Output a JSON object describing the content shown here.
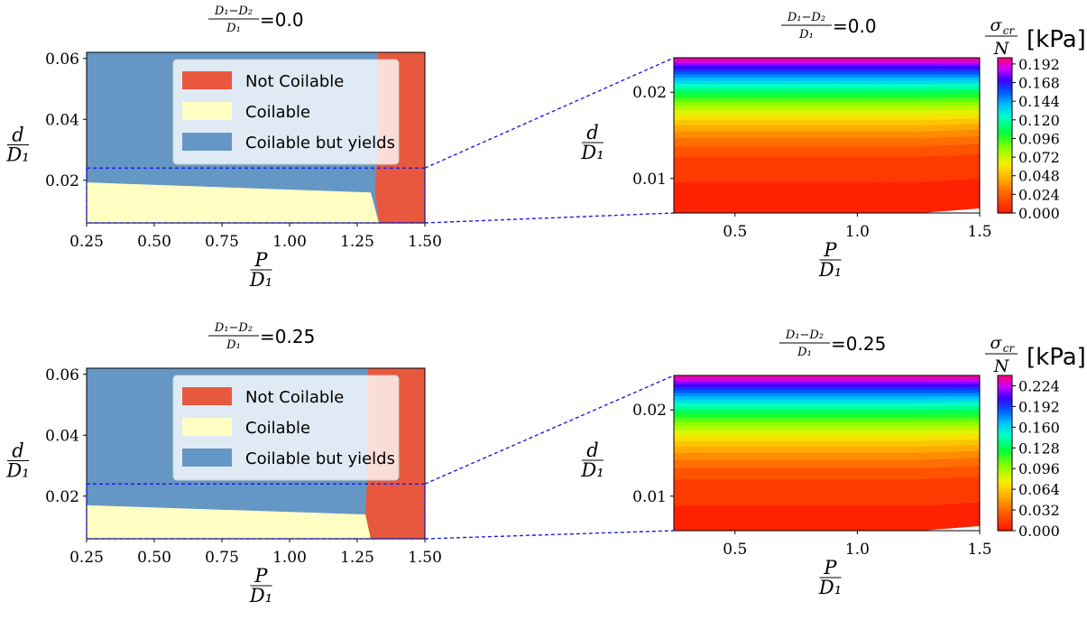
{
  "figure": {
    "panels": [
      {
        "id": "top",
        "title_ratio": "D₁−D₂",
        "title_ratio_den": "D₁",
        "title_value": "=0.0"
      },
      {
        "id": "bottom",
        "title_ratio": "D₁−D₂",
        "title_ratio_den": "D₁",
        "title_value": "=0.25"
      }
    ],
    "labels": {
      "d": "d",
      "D1": "D₁",
      "P": "P",
      "sigma": "σ",
      "sigma_sub": "cr",
      "N": "N",
      "kpa": "[kPa]"
    }
  },
  "colors": {
    "not_coilable": "#e8583f",
    "coilable": "#ffffc3",
    "coilable_yields": "#6597c5",
    "zoom_box": "#1f1fe0"
  },
  "chart_data": [
    {
      "type": "area",
      "panel": "top-left",
      "title": "(D1-D2)/D1=0.0",
      "xlabel": "P/D1",
      "ylabel": "d/D1",
      "xlim": [
        0.25,
        1.5
      ],
      "ylim": [
        0.006,
        0.062
      ],
      "xticks": [
        "0.25",
        "0.50",
        "0.75",
        "1.00",
        "1.25",
        "1.50"
      ],
      "yticks": [
        "0.02",
        "0.04",
        "0.06"
      ],
      "legend": [
        "Not Coilable",
        "Coilable",
        "Coilable but yields"
      ],
      "regions": {
        "coilable_upper": [
          [
            0.25,
            0.0193
          ],
          [
            1.3,
            0.016
          ]
        ],
        "not_coilable_left": [
          [
            1.325,
            0.062
          ],
          [
            1.325,
            0.03
          ],
          [
            1.315,
            0.0165
          ],
          [
            1.33,
            0.006
          ]
        ],
        "zoom_box": [
          0.25,
          1.5,
          0.006,
          0.024
        ]
      }
    },
    {
      "type": "heatmap",
      "panel": "top-right",
      "title": "(D1-D2)/D1=0.0",
      "xlabel": "P/D1",
      "ylabel": "d/D1",
      "colorbar_label": "σcr/N [kPa]",
      "xlim": [
        0.25,
        1.5
      ],
      "ylim": [
        0.006,
        0.024
      ],
      "xticks": [
        "0.5",
        "1.0",
        "1.5"
      ],
      "yticks": [
        "0.01",
        "0.02"
      ],
      "colorbar_ticks": [
        "0.000",
        "0.024",
        "0.048",
        "0.072",
        "0.096",
        "0.120",
        "0.144",
        "0.168",
        "0.192"
      ],
      "colorbar_range": [
        0.0,
        0.2
      ],
      "levels": 25
    },
    {
      "type": "area",
      "panel": "bottom-left",
      "title": "(D1-D2)/D1=0.25",
      "xlabel": "P/D1",
      "ylabel": "d/D1",
      "xlim": [
        0.25,
        1.5
      ],
      "ylim": [
        0.006,
        0.062
      ],
      "xticks": [
        "0.25",
        "0.50",
        "0.75",
        "1.00",
        "1.25",
        "1.50"
      ],
      "yticks": [
        "0.02",
        "0.04",
        "0.06"
      ],
      "legend": [
        "Not Coilable",
        "Coilable",
        "Coilable but yields"
      ],
      "regions": {
        "coilable_upper": [
          [
            0.25,
            0.017
          ],
          [
            1.28,
            0.014
          ]
        ],
        "not_coilable_left": [
          [
            1.29,
            0.062
          ],
          [
            1.29,
            0.03
          ],
          [
            1.28,
            0.0145
          ],
          [
            1.3,
            0.006
          ]
        ],
        "zoom_box": [
          0.25,
          1.5,
          0.006,
          0.024
        ]
      }
    },
    {
      "type": "heatmap",
      "panel": "bottom-right",
      "title": "(D1-D2)/D1=0.25",
      "xlabel": "P/D1",
      "ylabel": "d/D1",
      "colorbar_label": "σcr/N [kPa]",
      "xlim": [
        0.25,
        1.5
      ],
      "ylim": [
        0.006,
        0.024
      ],
      "xticks": [
        "0.5",
        "1.0",
        "1.5"
      ],
      "yticks": [
        "0.01",
        "0.02"
      ],
      "colorbar_ticks": [
        "0.000",
        "0.032",
        "0.064",
        "0.096",
        "0.128",
        "0.160",
        "0.192",
        "0.224"
      ],
      "colorbar_range": [
        0.0,
        0.24
      ],
      "levels": 25
    }
  ]
}
